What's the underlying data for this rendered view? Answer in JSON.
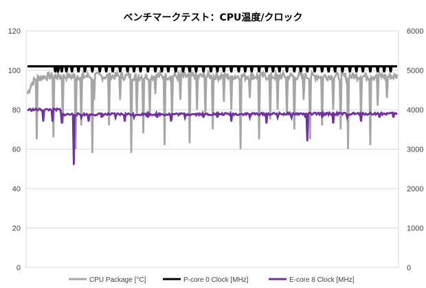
{
  "chart_data": {
    "type": "line",
    "title": "ベンチマークテスト：CPU温度/クロック",
    "xlabel": "",
    "ylabel": "",
    "ylim": [
      0,
      120
    ],
    "y_ticks": [
      "0",
      "20",
      "40",
      "60",
      "80",
      "100",
      "120"
    ],
    "y2lim": [
      0,
      6000
    ],
    "y2_ticks": [
      "0",
      "1000",
      "2000",
      "3000",
      "4000",
      "5000",
      "6000"
    ],
    "sample_count": 400,
    "grid": true,
    "legend_position": "bottom",
    "series": [
      {
        "name": "CPU Package [°C]",
        "axis": "left",
        "color": "#a6a6a6",
        "base_values": [
          [
            0,
            88
          ],
          [
            4,
            93
          ],
          [
            10,
            96
          ],
          [
            20,
            97
          ],
          [
            35,
            97
          ],
          [
            400,
            97
          ]
        ],
        "noise": 2,
        "dips": [
          [
            10,
            65
          ],
          [
            28,
            66
          ],
          [
            38,
            73
          ],
          [
            52,
            60
          ],
          [
            58,
            72
          ],
          [
            70,
            58
          ],
          [
            72,
            85
          ],
          [
            88,
            72
          ],
          [
            100,
            85
          ],
          [
            112,
            58
          ],
          [
            118,
            78
          ],
          [
            125,
            68
          ],
          [
            132,
            78
          ],
          [
            138,
            88
          ],
          [
            148,
            62
          ],
          [
            156,
            75
          ],
          [
            165,
            85
          ],
          [
            175,
            63
          ],
          [
            183,
            80
          ],
          [
            192,
            77
          ],
          [
            200,
            70
          ],
          [
            212,
            84
          ],
          [
            220,
            80
          ],
          [
            230,
            60
          ],
          [
            240,
            86
          ],
          [
            250,
            65
          ],
          [
            262,
            75
          ],
          [
            270,
            80
          ],
          [
            280,
            77
          ],
          [
            288,
            70
          ],
          [
            298,
            85
          ],
          [
            305,
            65
          ],
          [
            318,
            72
          ],
          [
            330,
            80
          ],
          [
            338,
            70
          ],
          [
            346,
            60
          ],
          [
            360,
            75
          ],
          [
            370,
            62
          ],
          [
            378,
            82
          ],
          [
            388,
            86
          ]
        ]
      },
      {
        "name": "P-core 0 Clock [MHz]",
        "axis": "right",
        "color": "#000000",
        "base_values": [
          [
            0,
            5100
          ],
          [
            400,
            5100
          ]
        ],
        "noise": 0,
        "dips": [
          [
            30,
            4950
          ],
          [
            33,
            4950
          ],
          [
            37,
            4950
          ],
          [
            42,
            4950
          ],
          [
            48,
            4950
          ],
          [
            55,
            4950
          ],
          [
            62,
            4950
          ],
          [
            70,
            4950
          ],
          [
            78,
            4950
          ],
          [
            85,
            4950
          ],
          [
            92,
            4950
          ],
          [
            100,
            4950
          ],
          [
            108,
            4950
          ],
          [
            115,
            4950
          ],
          [
            122,
            4950
          ],
          [
            130,
            4950
          ],
          [
            138,
            4950
          ],
          [
            145,
            4950
          ],
          [
            152,
            4950
          ],
          [
            160,
            4950
          ],
          [
            168,
            4950
          ],
          [
            175,
            4950
          ],
          [
            182,
            4950
          ],
          [
            190,
            4950
          ],
          [
            198,
            4950
          ],
          [
            205,
            4950
          ],
          [
            212,
            4950
          ],
          [
            220,
            4950
          ],
          [
            228,
            4950
          ],
          [
            235,
            4950
          ],
          [
            242,
            4950
          ],
          [
            250,
            4950
          ],
          [
            258,
            4950
          ],
          [
            265,
            4950
          ],
          [
            272,
            4950
          ],
          [
            280,
            4950
          ],
          [
            288,
            4950
          ],
          [
            295,
            4950
          ],
          [
            302,
            4950
          ],
          [
            310,
            4950
          ],
          [
            318,
            4950
          ],
          [
            325,
            4950
          ],
          [
            332,
            4950
          ],
          [
            340,
            4950
          ],
          [
            348,
            4950
          ],
          [
            355,
            4950
          ],
          [
            362,
            4950
          ],
          [
            370,
            4950
          ],
          [
            378,
            4950
          ],
          [
            385,
            4950
          ],
          [
            392,
            4950
          ]
        ]
      },
      {
        "name": "E-core 8 Clock [MHz]",
        "axis": "right",
        "color": "#7030a0",
        "base_values": [
          [
            0,
            4000
          ],
          [
            35,
            4000
          ],
          [
            37,
            3880
          ],
          [
            400,
            3900
          ]
        ],
        "noise": 30,
        "dips": [
          [
            17,
            3700
          ],
          [
            27,
            3700
          ],
          [
            37,
            3650
          ],
          [
            50,
            2600
          ],
          [
            58,
            3800
          ],
          [
            66,
            3700
          ],
          [
            80,
            3800
          ],
          [
            95,
            3800
          ],
          [
            105,
            3700
          ],
          [
            115,
            3800
          ],
          [
            130,
            3800
          ],
          [
            140,
            3800
          ],
          [
            155,
            3700
          ],
          [
            170,
            3800
          ],
          [
            190,
            3800
          ],
          [
            205,
            3800
          ],
          [
            220,
            3700
          ],
          [
            240,
            3800
          ],
          [
            258,
            3650
          ],
          [
            270,
            3800
          ],
          [
            285,
            3800
          ],
          [
            300,
            3800
          ],
          [
            302,
            3200
          ],
          [
            318,
            3800
          ],
          [
            330,
            3650
          ],
          [
            345,
            3800
          ],
          [
            360,
            3700
          ],
          [
            380,
            3800
          ],
          [
            395,
            3800
          ]
        ]
      }
    ]
  }
}
